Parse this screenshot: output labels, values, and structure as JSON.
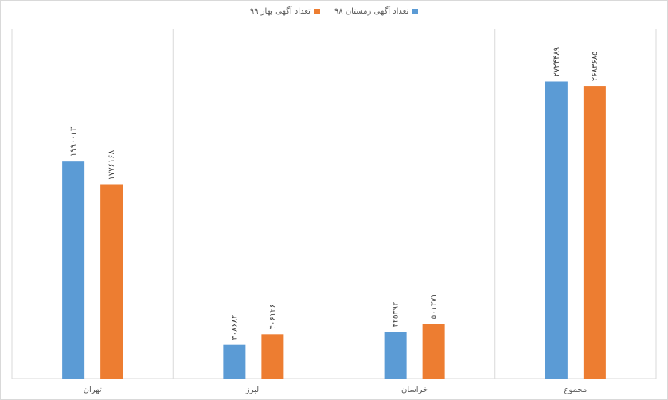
{
  "chart_data": {
    "type": "bar",
    "categories": [
      "تهران",
      "البرز",
      "خراسان",
      "مجموع"
    ],
    "series": [
      {
        "name": "تعداد آگهی زمستان ۹۸",
        "color": "#5b9bd5",
        "values": [
          1990013,
          308682,
          425392,
          2724489
        ],
        "labels": [
          "۱۹۹۰۰۱۳",
          "۳۰۸۶۸۲",
          "۴۲۵۳۹۲",
          "۲۷۲۴۴۸۹"
        ]
      },
      {
        "name": "تعداد آگهی بهار ۹۹",
        "color": "#ed7d31",
        "values": [
          1776168,
          406126,
          501371,
          2683685
        ],
        "labels": [
          "۱۷۷۶۱۶۸",
          "۴۰۶۱۲۶",
          "۵۰۱۳۷۱",
          "۲۶۸۳۶۸۵"
        ]
      }
    ],
    "title": "",
    "xlabel": "",
    "ylabel": "",
    "ylim": [
      0,
      3100000
    ],
    "grid": "vertical-separators",
    "legend_position": "top-center"
  }
}
